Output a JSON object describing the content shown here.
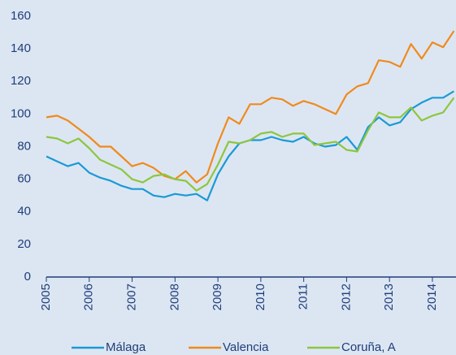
{
  "chart_data": {
    "type": "line",
    "x": [
      2005,
      2005.25,
      2005.5,
      2005.75,
      2006,
      2006.25,
      2006.5,
      2006.75,
      2007,
      2007.25,
      2007.5,
      2007.75,
      2008,
      2008.25,
      2008.5,
      2008.75,
      2009,
      2009.25,
      2009.5,
      2009.75,
      2010,
      2010.25,
      2010.5,
      2010.75,
      2011,
      2011.25,
      2011.5,
      2011.75,
      2012,
      2012.25,
      2012.5,
      2012.75,
      2013,
      2013.25,
      2013.5,
      2013.75,
      2014,
      2014.25,
      2014.5
    ],
    "series": [
      {
        "name": "Málaga",
        "color": "#1a9ad6",
        "values": [
          74,
          71,
          68,
          70,
          64,
          61,
          59,
          56,
          54,
          54,
          50,
          49,
          51,
          50,
          51,
          47,
          63,
          74,
          82,
          84,
          84,
          86,
          84,
          83,
          86,
          82,
          80,
          81,
          86,
          78,
          92,
          98,
          93,
          95,
          103,
          107,
          110,
          110,
          114
        ]
      },
      {
        "name": "Valencia",
        "color": "#f08a1d",
        "values": [
          98,
          99,
          96,
          91,
          86,
          80,
          80,
          74,
          68,
          70,
          67,
          62,
          60,
          65,
          58,
          63,
          82,
          98,
          94,
          106,
          106,
          110,
          109,
          105,
          108,
          106,
          103,
          100,
          112,
          117,
          119,
          133,
          132,
          129,
          143,
          134,
          144,
          141,
          151
        ]
      },
      {
        "name": "Coruña, A",
        "color": "#8dc63f",
        "values": [
          86,
          85,
          82,
          85,
          79,
          72,
          69,
          66,
          60,
          58,
          62,
          63,
          60,
          59,
          53,
          57,
          69,
          83,
          82,
          84,
          88,
          89,
          86,
          88,
          88,
          81,
          82,
          83,
          78,
          77,
          90,
          101,
          98,
          98,
          104,
          96,
          99,
          101,
          110
        ]
      }
    ],
    "xlim": [
      2005,
      2014.55
    ],
    "xticks": [
      2005,
      2006,
      2007,
      2008,
      2009,
      2010,
      2011,
      2012,
      2013,
      2014
    ],
    "ylim": [
      0,
      160
    ],
    "yticks": [
      0,
      20,
      40,
      60,
      80,
      100,
      120,
      140,
      160
    ],
    "grid": false,
    "legend": "bottom"
  }
}
